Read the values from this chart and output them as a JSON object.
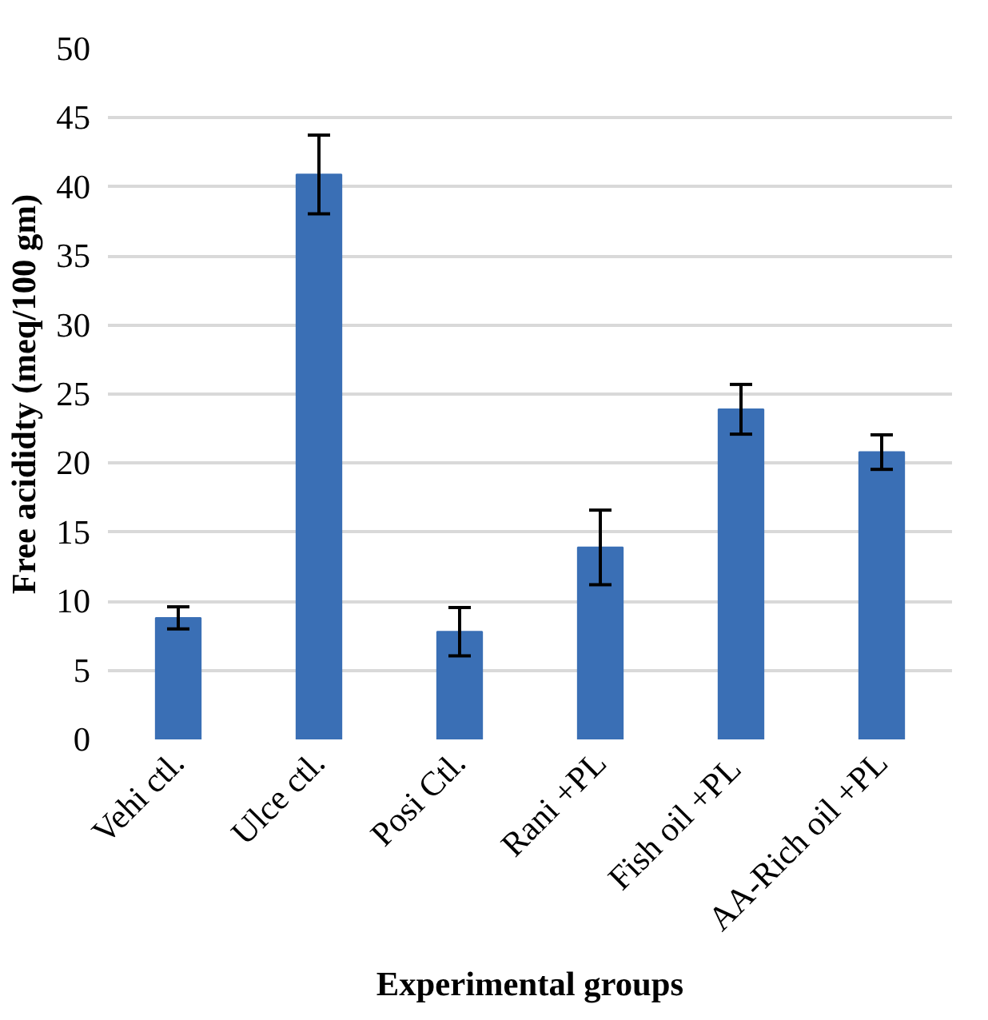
{
  "chart_data": {
    "type": "bar",
    "xlabel": "Experimental groups",
    "ylabel": "Free acididty (meq/100 gm)",
    "categories": [
      "Vehi ctl.",
      "Ulce ctl.",
      "Posi Ctl.",
      "Rani +PL",
      "Fish oil  +PL",
      "AA-Rich oil +PL"
    ],
    "values": [
      8.8,
      40.9,
      7.8,
      13.9,
      23.9,
      20.8
    ],
    "errors": [
      0.8,
      2.85,
      1.75,
      2.7,
      1.8,
      1.25
    ],
    "color": "#3a6fb5",
    "ylim": [
      0,
      50
    ],
    "yticks": [
      0,
      5,
      10,
      15,
      20,
      25,
      30,
      35,
      40,
      45,
      50
    ],
    "grid": "y"
  }
}
